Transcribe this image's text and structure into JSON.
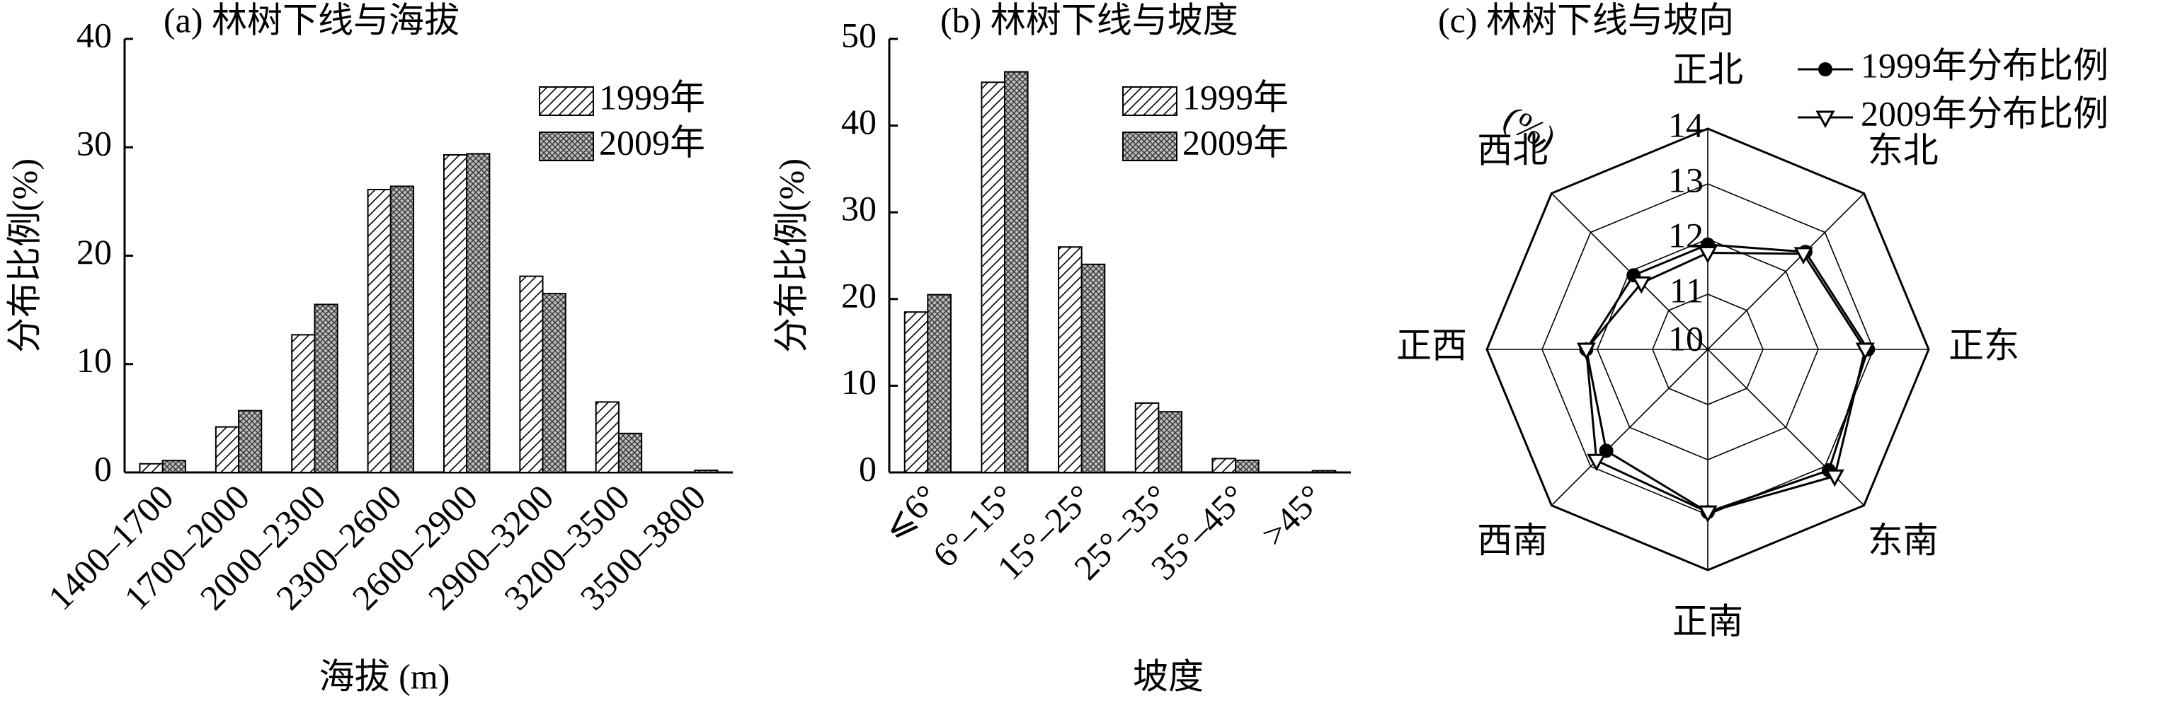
{
  "chart_data": [
    {
      "type": "bar",
      "title": "(a) 林树下线与海拔",
      "y_label": "分布比例(%)",
      "x_label": "海拔 (m)",
      "categories": [
        "1400–1700",
        "1700–2000",
        "2000–2300",
        "2300–2600",
        "2600–2900",
        "2900–3200",
        "3200–3500",
        "3500–3800"
      ],
      "series": [
        {
          "name": "1999年",
          "color": "#000000",
          "pattern": "hatch",
          "values": [
            0.8,
            4.2,
            12.7,
            26.1,
            29.3,
            18.1,
            6.5,
            0.0
          ]
        },
        {
          "name": "2009年",
          "color": "#000000",
          "pattern": "crosshatch",
          "values": [
            1.1,
            5.7,
            15.5,
            26.4,
            29.4,
            16.5,
            3.6,
            0.2
          ]
        }
      ],
      "ylim": [
        0,
        40
      ],
      "yticks": [
        0,
        10,
        20,
        30,
        40
      ],
      "legend": "upper right"
    },
    {
      "type": "bar",
      "title": "(b) 林树下线与坡度",
      "y_label": "分布比例(%)",
      "x_label": "坡度",
      "categories": [
        "⩽6°",
        "6°–15°",
        "15°–25°",
        "25°–35°",
        "35°–45°",
        ">45°"
      ],
      "series": [
        {
          "name": "1999年",
          "color": "#000000",
          "pattern": "hatch",
          "values": [
            18.5,
            45.0,
            26.0,
            8.0,
            1.6,
            0.0
          ]
        },
        {
          "name": "2009年",
          "color": "#000000",
          "pattern": "crosshatch",
          "values": [
            20.5,
            46.2,
            24.0,
            7.0,
            1.4,
            0.2
          ]
        }
      ],
      "ylim": [
        0,
        50
      ],
      "yticks": [
        0,
        10,
        20,
        30,
        40,
        50
      ],
      "legend": "upper right"
    },
    {
      "type": "radar",
      "title": "(c) 林树下线与坡向",
      "r_label": "(%)",
      "categories": [
        "正北",
        "东北",
        "正东",
        "东南",
        "正南",
        "西南",
        "正西",
        "西北"
      ],
      "series": [
        {
          "name": "1999年分布比例",
          "color": "#000000",
          "marker": "circle",
          "values": [
            11.9,
            12.5,
            12.9,
            13.1,
            12.95,
            12.6,
            12.2,
            11.9
          ]
        },
        {
          "name": "2009年分布比例",
          "color": "#000000",
          "marker": "triangle-down",
          "values": [
            11.75,
            12.45,
            12.85,
            13.25,
            12.95,
            12.85,
            12.2,
            11.7
          ]
        }
      ],
      "rlim": [
        10,
        14
      ],
      "rticks": [
        10,
        11,
        12,
        13,
        14
      ],
      "legend": "upper right"
    }
  ]
}
